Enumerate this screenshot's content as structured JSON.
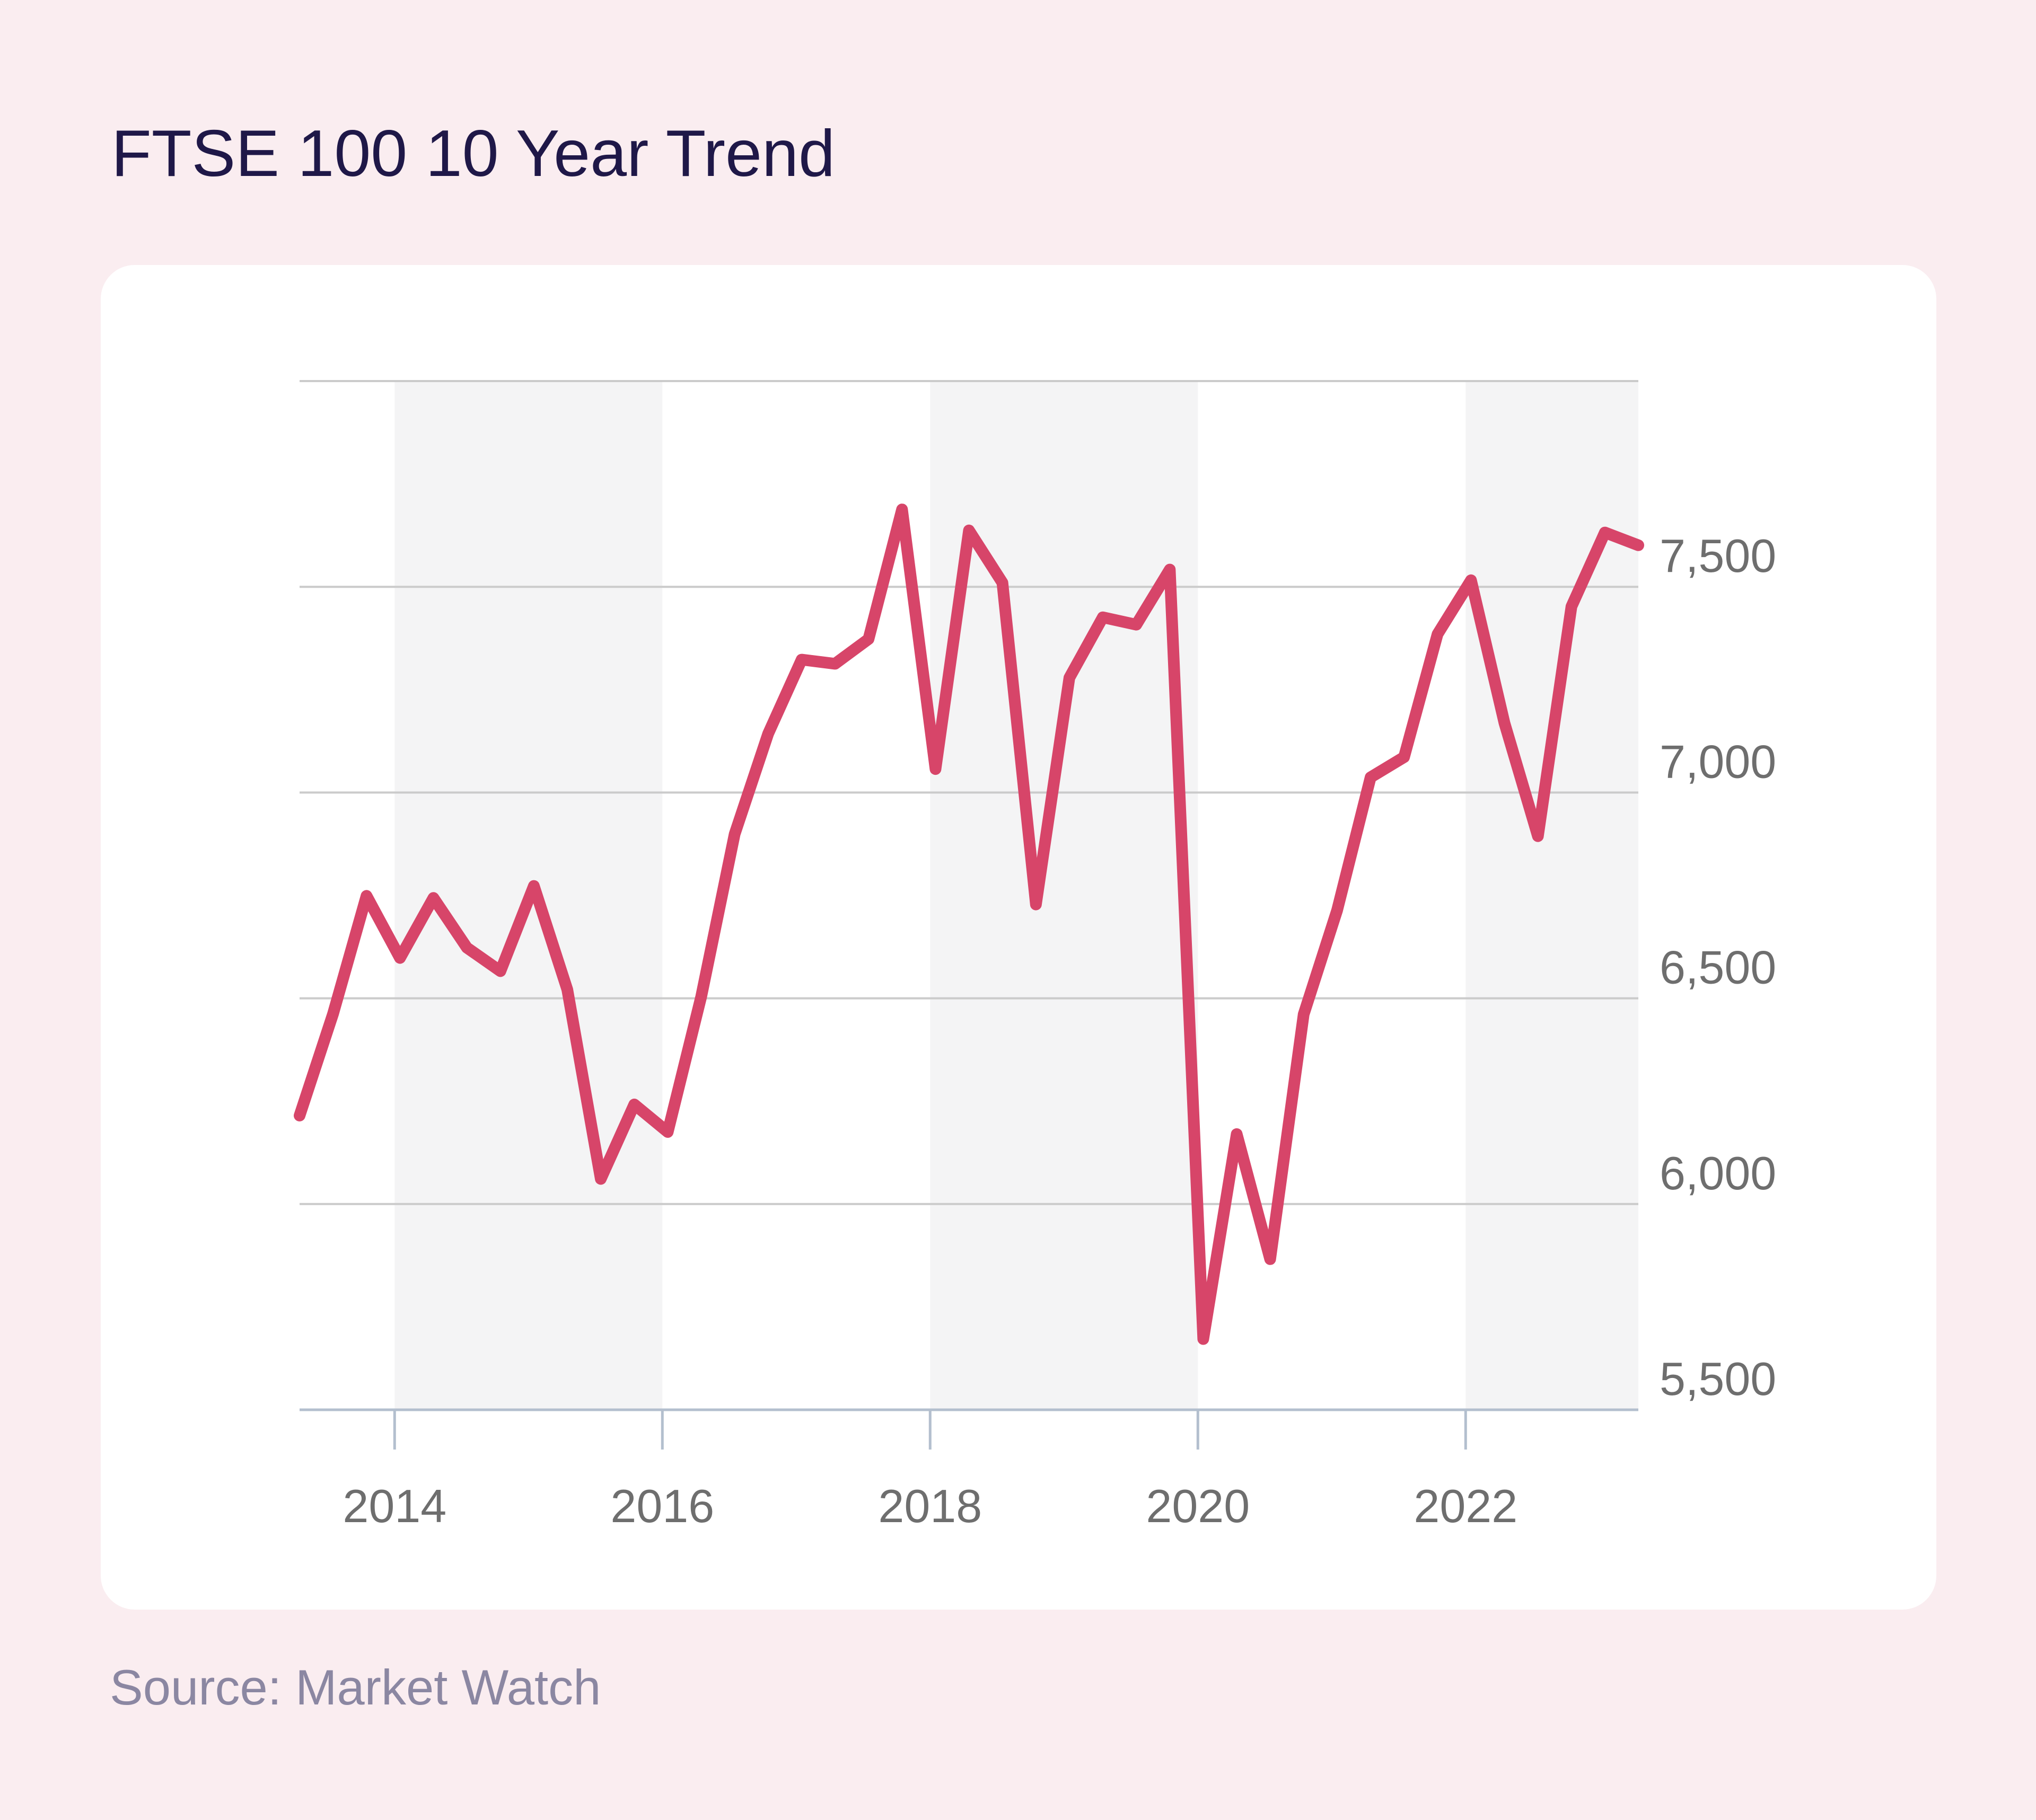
{
  "header": {
    "title": "FTSE 100 10 Year Trend"
  },
  "footer": {
    "source": "Source: Market Watch"
  },
  "chart_data": {
    "type": "line",
    "title": "FTSE 100 10 Year Trend",
    "source": "Source: Market Watch",
    "period": "quarterly",
    "x_start_decimal_year": 2013.29,
    "x_end_decimal_year": 2023.29,
    "x_tick_years": [
      2014,
      2016,
      2018,
      2020,
      2022
    ],
    "x_tick_labels": [
      "2014",
      "2016",
      "2018",
      "2020",
      "2022"
    ],
    "y_ticks": [
      5500,
      6000,
      6500,
      7000,
      7500
    ],
    "y_tick_labels": [
      "5,500",
      "6,000",
      "6,500",
      "7,000",
      "7,500"
    ],
    "ylim": [
      5500,
      8000
    ],
    "grid_values": [
      6000,
      6500,
      7000,
      7500,
      8000
    ],
    "shaded_year_bands": [
      [
        2014,
        2016
      ],
      [
        2018,
        2020
      ],
      [
        2022,
        2023.29
      ]
    ],
    "legend_position": "none",
    "series": [
      {
        "name": "FTSE 100",
        "x": [
          2013.29,
          2013.54,
          2013.79,
          2014.04,
          2014.29,
          2014.54,
          2014.79,
          2015.04,
          2015.29,
          2015.54,
          2015.79,
          2016.04,
          2016.29,
          2016.54,
          2016.79,
          2017.04,
          2017.29,
          2017.54,
          2017.79,
          2018.04,
          2018.29,
          2018.54,
          2018.79,
          2019.04,
          2019.29,
          2019.54,
          2019.79,
          2020.04,
          2020.29,
          2020.54,
          2020.79,
          2021.04,
          2021.29,
          2021.54,
          2021.79,
          2022.04,
          2022.29,
          2022.54,
          2022.79,
          2023.04,
          2023.29
        ],
        "values": [
          6215,
          6462,
          6749,
          6598,
          6744,
          6623,
          6566,
          6773,
          6521,
          6061,
          6242,
          6175,
          6504,
          6899,
          7143,
          7323,
          7313,
          7373,
          7688,
          7057,
          7637,
          7510,
          6728,
          7279,
          7426,
          7408,
          7542,
          5672,
          6170,
          5866,
          6461,
          6714,
          7037,
          7086,
          7385,
          7516,
          7169,
          6894,
          7452,
          7632,
          7601
        ]
      }
    ],
    "colors": {
      "line": "#d74569",
      "gridline": "#cbcbcb",
      "axis": "#b3bfce",
      "tick_label": "#6e6e6e",
      "band": "#f4f4f5",
      "card_background": "#ffffff",
      "page_background": "#faedf0",
      "title_text": "#1f1848",
      "source_text": "#8b87a2"
    }
  }
}
